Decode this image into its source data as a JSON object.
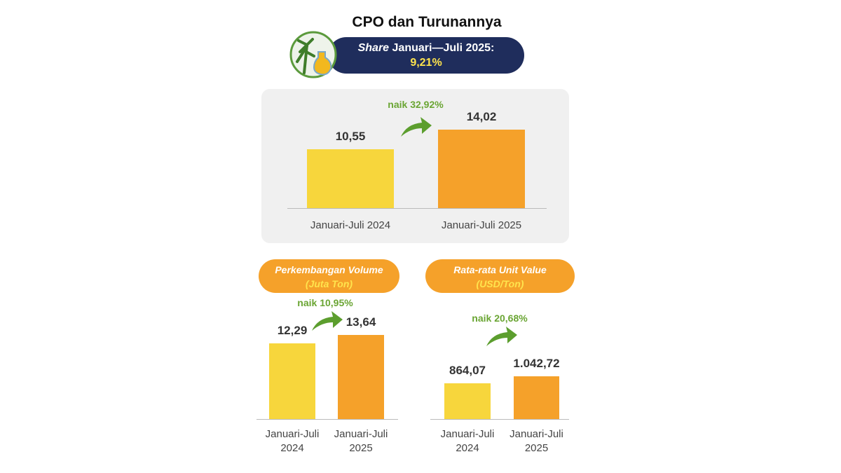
{
  "header": {
    "title": "CPO dan Turunannya",
    "share": {
      "label_italic": "Share",
      "label": "Januari—Juli 2025:",
      "value": "9,21%"
    }
  },
  "chart_data": [
    {
      "type": "bar",
      "categories": [
        "Januari-Juli 2024",
        "Januari-Juli 2025"
      ],
      "values": [
        10.55,
        14.02
      ],
      "value_labels": [
        "10,55",
        "14,02"
      ],
      "colors": [
        "#f7d63c",
        "#f5a12a"
      ],
      "annotation": "naik 32,92%"
    },
    {
      "type": "bar",
      "title": "Perkembangan Volume",
      "subtitle": "(Juta Ton)",
      "categories": [
        "Januari-Juli 2024",
        "Januari-Juli 2025"
      ],
      "values": [
        12.29,
        13.64
      ],
      "value_labels": [
        "12,29",
        "13,64"
      ],
      "colors": [
        "#f7d63c",
        "#f5a12a"
      ],
      "annotation": "naik 10,95%"
    },
    {
      "type": "bar",
      "title": "Rata-rata Unit Value",
      "subtitle": "(USD/Ton)",
      "categories": [
        "Januari-Juli 2024",
        "Januari-Juli 2025"
      ],
      "values": [
        864.07,
        1042.72
      ],
      "value_labels": [
        "864,07",
        "1.042,72"
      ],
      "colors": [
        "#f7d63c",
        "#f5a12a"
      ],
      "annotation": "naik 20,68%"
    }
  ]
}
